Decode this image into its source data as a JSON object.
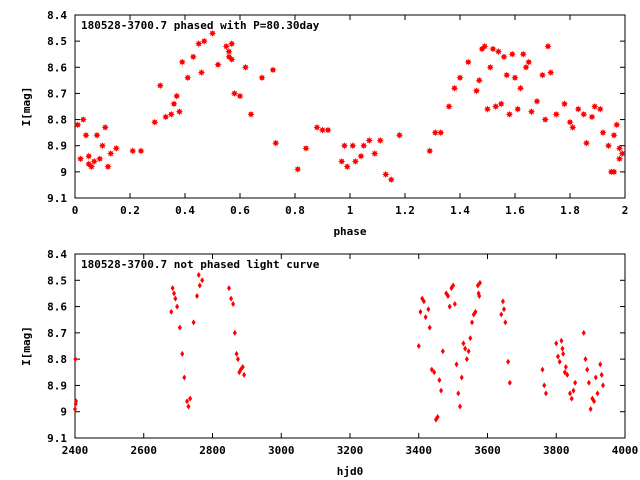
{
  "chart_data": [
    {
      "type": "scatter",
      "title": "180528-3700.7 phased with P=80.30day",
      "xlabel": "phase",
      "ylabel": "I[mag]",
      "xlim": [
        0,
        2
      ],
      "ylim": [
        9.1,
        8.4
      ],
      "y_inverted": true,
      "marker_color": "#ff0000",
      "marker": "star",
      "xticks": [
        "0",
        "0.2",
        "0.4",
        "0.6",
        "0.8",
        "1",
        "1.2",
        "1.4",
        "1.6",
        "1.8",
        "2"
      ],
      "yticks": [
        "8.4",
        "8.5",
        "8.6",
        "8.7",
        "8.8",
        "8.9",
        "9",
        "9.1"
      ],
      "points": [
        [
          0.01,
          8.82
        ],
        [
          0.02,
          8.95
        ],
        [
          0.03,
          8.8
        ],
        [
          0.04,
          8.86
        ],
        [
          0.05,
          8.94
        ],
        [
          0.05,
          8.97
        ],
        [
          0.06,
          8.98
        ],
        [
          0.07,
          8.96
        ],
        [
          0.08,
          8.86
        ],
        [
          0.09,
          8.95
        ],
        [
          0.1,
          8.9
        ],
        [
          0.11,
          8.83
        ],
        [
          0.12,
          8.98
        ],
        [
          0.13,
          8.93
        ],
        [
          0.15,
          8.91
        ],
        [
          0.21,
          8.92
        ],
        [
          0.24,
          8.92
        ],
        [
          0.29,
          8.81
        ],
        [
          0.31,
          8.67
        ],
        [
          0.33,
          8.79
        ],
        [
          0.35,
          8.78
        ],
        [
          0.36,
          8.74
        ],
        [
          0.37,
          8.71
        ],
        [
          0.38,
          8.77
        ],
        [
          0.39,
          8.58
        ],
        [
          0.41,
          8.64
        ],
        [
          0.43,
          8.56
        ],
        [
          0.45,
          8.51
        ],
        [
          0.46,
          8.62
        ],
        [
          0.47,
          8.5
        ],
        [
          0.5,
          8.47
        ],
        [
          0.52,
          8.59
        ],
        [
          0.55,
          8.52
        ],
        [
          0.56,
          8.56
        ],
        [
          0.56,
          8.54
        ],
        [
          0.57,
          8.51
        ],
        [
          0.57,
          8.57
        ],
        [
          0.58,
          8.7
        ],
        [
          0.6,
          8.71
        ],
        [
          0.62,
          8.6
        ],
        [
          0.64,
          8.78
        ],
        [
          0.68,
          8.64
        ],
        [
          0.72,
          8.61
        ],
        [
          0.73,
          8.89
        ],
        [
          0.81,
          8.99
        ],
        [
          0.84,
          8.91
        ],
        [
          0.88,
          8.83
        ],
        [
          0.9,
          8.84
        ],
        [
          0.92,
          8.84
        ],
        [
          0.97,
          8.96
        ],
        [
          0.98,
          8.9
        ],
        [
          0.99,
          8.98
        ],
        [
          1.01,
          8.9
        ],
        [
          1.02,
          8.96
        ],
        [
          1.04,
          8.94
        ],
        [
          1.05,
          8.9
        ],
        [
          1.07,
          8.88
        ],
        [
          1.09,
          8.93
        ],
        [
          1.11,
          8.88
        ],
        [
          1.13,
          9.01
        ],
        [
          1.15,
          9.03
        ],
        [
          1.18,
          8.86
        ],
        [
          1.29,
          8.92
        ],
        [
          1.31,
          8.85
        ],
        [
          1.33,
          8.85
        ],
        [
          1.36,
          8.75
        ],
        [
          1.38,
          8.68
        ],
        [
          1.4,
          8.64
        ],
        [
          1.43,
          8.58
        ],
        [
          1.46,
          8.69
        ],
        [
          1.47,
          8.65
        ],
        [
          1.48,
          8.53
        ],
        [
          1.49,
          8.52
        ],
        [
          1.5,
          8.76
        ],
        [
          1.51,
          8.6
        ],
        [
          1.52,
          8.53
        ],
        [
          1.53,
          8.75
        ],
        [
          1.54,
          8.54
        ],
        [
          1.55,
          8.74
        ],
        [
          1.56,
          8.56
        ],
        [
          1.57,
          8.63
        ],
        [
          1.58,
          8.78
        ],
        [
          1.59,
          8.55
        ],
        [
          1.6,
          8.64
        ],
        [
          1.61,
          8.76
        ],
        [
          1.62,
          8.68
        ],
        [
          1.63,
          8.55
        ],
        [
          1.64,
          8.6
        ],
        [
          1.65,
          8.58
        ],
        [
          1.66,
          8.77
        ],
        [
          1.68,
          8.73
        ],
        [
          1.7,
          8.63
        ],
        [
          1.71,
          8.8
        ],
        [
          1.72,
          8.52
        ],
        [
          1.73,
          8.62
        ],
        [
          1.75,
          8.78
        ],
        [
          1.78,
          8.74
        ],
        [
          1.8,
          8.81
        ],
        [
          1.81,
          8.83
        ],
        [
          1.83,
          8.76
        ],
        [
          1.85,
          8.78
        ],
        [
          1.86,
          8.89
        ],
        [
          1.88,
          8.79
        ],
        [
          1.89,
          8.75
        ],
        [
          1.91,
          8.76
        ],
        [
          1.92,
          8.85
        ],
        [
          1.94,
          8.9
        ],
        [
          1.95,
          9.0
        ],
        [
          1.96,
          8.86
        ],
        [
          1.96,
          9.0
        ],
        [
          1.97,
          8.82
        ],
        [
          1.98,
          8.95
        ],
        [
          1.99,
          8.93
        ],
        [
          1.98,
          8.91
        ]
      ]
    },
    {
      "type": "scatter",
      "title": "180528-3700.7 not phased light curve",
      "xlabel": "hjd0",
      "ylabel": "I[mag]",
      "xlim": [
        2400,
        4000
      ],
      "ylim": [
        9.1,
        8.4
      ],
      "y_inverted": true,
      "marker_color": "#ff0000",
      "marker": "diamond",
      "xticks": [
        "2400",
        "2600",
        "2800",
        "3000",
        "3200",
        "3400",
        "3600",
        "3800",
        "4000"
      ],
      "yticks": [
        "8.4",
        "8.5",
        "8.6",
        "8.7",
        "8.8",
        "8.9",
        "9",
        "9.1"
      ],
      "points": [
        [
          2401,
          8.8
        ],
        [
          2402,
          8.97
        ],
        [
          2403,
          8.96
        ],
        [
          2400,
          8.99
        ],
        [
          2680,
          8.62
        ],
        [
          2684,
          8.53
        ],
        [
          2688,
          8.55
        ],
        [
          2692,
          8.57
        ],
        [
          2697,
          8.6
        ],
        [
          2705,
          8.68
        ],
        [
          2712,
          8.78
        ],
        [
          2718,
          8.87
        ],
        [
          2726,
          8.96
        ],
        [
          2730,
          8.98
        ],
        [
          2735,
          8.95
        ],
        [
          2745,
          8.66
        ],
        [
          2755,
          8.56
        ],
        [
          2760,
          8.48
        ],
        [
          2763,
          8.52
        ],
        [
          2770,
          8.5
        ],
        [
          2848,
          8.53
        ],
        [
          2854,
          8.57
        ],
        [
          2860,
          8.59
        ],
        [
          2865,
          8.7
        ],
        [
          2870,
          8.78
        ],
        [
          2874,
          8.8
        ],
        [
          2878,
          8.85
        ],
        [
          2882,
          8.84
        ],
        [
          2888,
          8.83
        ],
        [
          2892,
          8.86
        ],
        [
          3400,
          8.75
        ],
        [
          3405,
          8.62
        ],
        [
          3410,
          8.57
        ],
        [
          3415,
          8.58
        ],
        [
          3420,
          8.64
        ],
        [
          3428,
          8.61
        ],
        [
          3432,
          8.68
        ],
        [
          3438,
          8.84
        ],
        [
          3445,
          8.85
        ],
        [
          3450,
          9.03
        ],
        [
          3455,
          9.02
        ],
        [
          3460,
          8.88
        ],
        [
          3465,
          8.92
        ],
        [
          3470,
          8.77
        ],
        [
          3480,
          8.55
        ],
        [
          3485,
          8.56
        ],
        [
          3490,
          8.6
        ],
        [
          3495,
          8.53
        ],
        [
          3500,
          8.52
        ],
        [
          3505,
          8.59
        ],
        [
          3510,
          8.82
        ],
        [
          3515,
          8.93
        ],
        [
          3520,
          8.98
        ],
        [
          3525,
          8.87
        ],
        [
          3530,
          8.74
        ],
        [
          3535,
          8.76
        ],
        [
          3540,
          8.8
        ],
        [
          3545,
          8.77
        ],
        [
          3550,
          8.72
        ],
        [
          3555,
          8.66
        ],
        [
          3560,
          8.63
        ],
        [
          3565,
          8.62
        ],
        [
          3572,
          8.52
        ],
        [
          3574,
          8.55
        ],
        [
          3576,
          8.56
        ],
        [
          3578,
          8.51
        ],
        [
          3640,
          8.63
        ],
        [
          3645,
          8.58
        ],
        [
          3648,
          8.61
        ],
        [
          3652,
          8.66
        ],
        [
          3660,
          8.81
        ],
        [
          3665,
          8.89
        ],
        [
          3760,
          8.84
        ],
        [
          3765,
          8.9
        ],
        [
          3770,
          8.93
        ],
        [
          3800,
          8.74
        ],
        [
          3805,
          8.79
        ],
        [
          3810,
          8.81
        ],
        [
          3815,
          8.73
        ],
        [
          3818,
          8.76
        ],
        [
          3820,
          8.78
        ],
        [
          3825,
          8.85
        ],
        [
          3828,
          8.83
        ],
        [
          3832,
          8.86
        ],
        [
          3840,
          8.93
        ],
        [
          3845,
          8.95
        ],
        [
          3850,
          8.92
        ],
        [
          3855,
          8.89
        ],
        [
          3880,
          8.7
        ],
        [
          3885,
          8.8
        ],
        [
          3890,
          8.84
        ],
        [
          3895,
          8.89
        ],
        [
          3900,
          8.99
        ],
        [
          3905,
          8.95
        ],
        [
          3910,
          8.96
        ],
        [
          3915,
          8.87
        ],
        [
          3920,
          8.93
        ],
        [
          3928,
          8.82
        ],
        [
          3932,
          8.86
        ],
        [
          3936,
          8.9
        ]
      ]
    }
  ]
}
